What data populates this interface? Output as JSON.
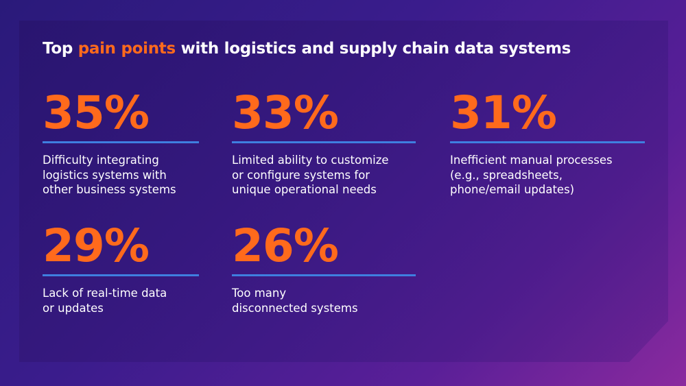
{
  "header": {
    "title_start": "Top",
    "title_highlight": "pain points",
    "title_end": "with logistics and supply chain data systems"
  },
  "stats": [
    {
      "value": "35%",
      "description": [
        "Difficulty integrating",
        "logistics systems with",
        "other business systems"
      ]
    },
    {
      "value": "33%",
      "description": [
        "Limited ability to customize",
        "or configure systems for",
        "unique operational needs"
      ]
    },
    {
      "value": "31%",
      "description": [
        "Inefficient manual processes",
        "(e.g., spreadsheets,",
        "phone/email updates)"
      ]
    },
    {
      "value": "29%",
      "description": [
        "Lack of real-time data",
        "or updates"
      ]
    },
    {
      "value": "26%",
      "description": [
        "Too many",
        "disconnected systems"
      ]
    }
  ]
}
